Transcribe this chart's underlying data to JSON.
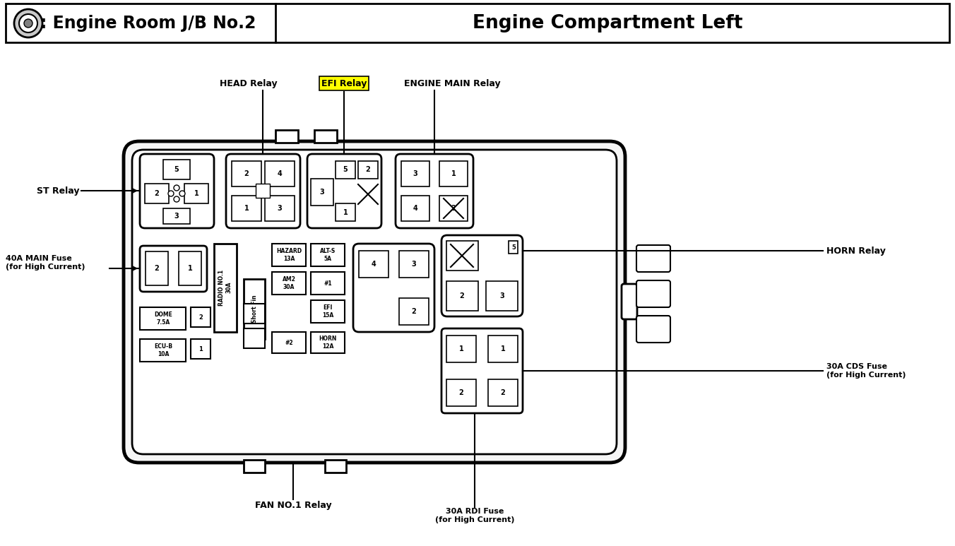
{
  "title_left": ": Engine Room J/B No.2",
  "title_right": "Engine Compartment Left",
  "bg_color": "#ffffff",
  "highlight_color": "#ffff00",
  "efi_relay_label": "EFI Relay",
  "head_relay_label": "HEAD Relay",
  "engine_main_relay_label": "ENGINE MAIN Relay",
  "st_relay_label": "ST Relay",
  "horn_relay_label": "HORN Relay",
  "fan_relay_label": "FAN NO.1 Relay",
  "label_40a": "40A MAIN Fuse\n(for High Current)",
  "label_30a_rdi": "30A RDI Fuse\n(for High Current)",
  "label_30a_cds": "30A CDS Fuse\n(for High Current)"
}
